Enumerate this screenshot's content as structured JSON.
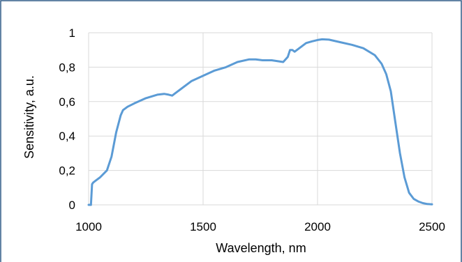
{
  "chart_data": {
    "type": "line",
    "title": "",
    "xlabel": "Wavelength, nm",
    "ylabel": "Sensitivity, a.u.",
    "xlim": [
      1000,
      2500
    ],
    "ylim": [
      0,
      1
    ],
    "xticks": [
      1000,
      1500,
      2000,
      2500
    ],
    "xtick_labels": [
      "1000",
      "1500",
      "2000",
      "2500"
    ],
    "yticks": [
      0,
      0.2,
      0.4,
      0.6,
      0.8,
      1
    ],
    "ytick_labels": [
      "0",
      "0,2",
      "0,4",
      "0,6",
      "0,8",
      "1"
    ],
    "grid": {
      "vertical": true,
      "horizontal": true
    },
    "legend": "none",
    "colors": {
      "line": "#5B9BD5",
      "grid": "#D9D9D9",
      "frame": "#2E5A87"
    },
    "series": [
      {
        "x": [
          1000,
          1010,
          1015,
          1020,
          1030,
          1050,
          1080,
          1100,
          1120,
          1140,
          1150,
          1170,
          1200,
          1250,
          1300,
          1330,
          1350,
          1365,
          1380,
          1400,
          1450,
          1500,
          1550,
          1600,
          1650,
          1700,
          1730,
          1760,
          1800,
          1850,
          1870,
          1880,
          1890,
          1900,
          1950,
          1975,
          2000,
          2020,
          2050,
          2100,
          2150,
          2200,
          2250,
          2280,
          2300,
          2320,
          2340,
          2360,
          2380,
          2400,
          2420,
          2440,
          2460,
          2480,
          2500
        ],
        "y": [
          0.0,
          0.0,
          0.12,
          0.13,
          0.14,
          0.16,
          0.2,
          0.28,
          0.42,
          0.52,
          0.55,
          0.57,
          0.59,
          0.62,
          0.64,
          0.645,
          0.64,
          0.635,
          0.65,
          0.67,
          0.72,
          0.75,
          0.78,
          0.8,
          0.83,
          0.845,
          0.845,
          0.84,
          0.84,
          0.83,
          0.86,
          0.9,
          0.9,
          0.89,
          0.94,
          0.95,
          0.958,
          0.962,
          0.96,
          0.945,
          0.93,
          0.91,
          0.87,
          0.82,
          0.76,
          0.66,
          0.48,
          0.3,
          0.16,
          0.07,
          0.035,
          0.02,
          0.01,
          0.005,
          0.003
        ]
      }
    ]
  }
}
